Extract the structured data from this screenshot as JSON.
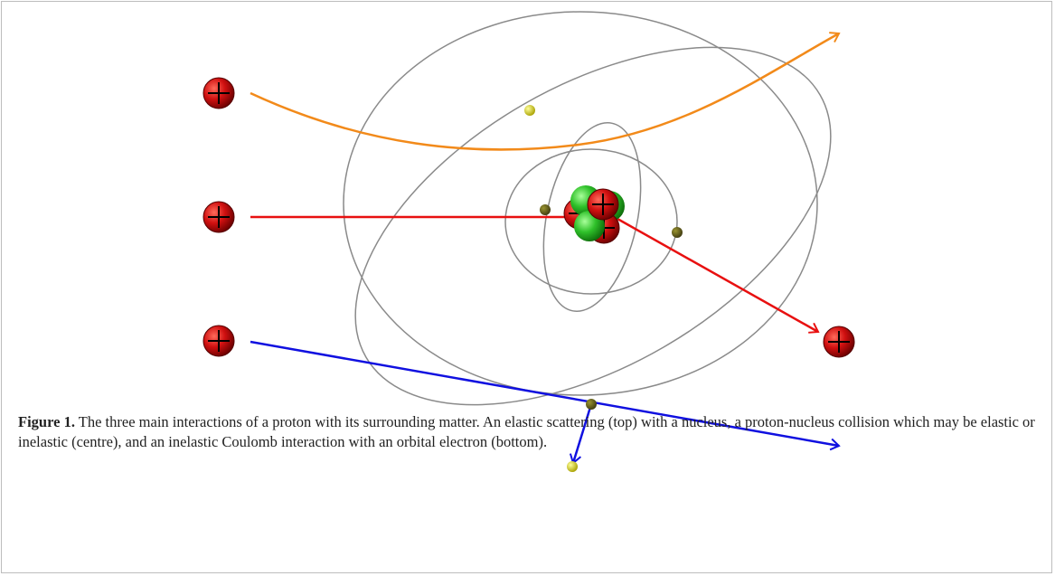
{
  "figure": {
    "label": "Figure 1.",
    "caption": "The three main interactions of a proton with its surrounding matter. An elastic scattering (top) with a nucleus, a proton-nucleus collision which may be elastic or inelastic (centre), and an inelastic Coulomb interaction with an orbital electron (bottom)."
  }
}
